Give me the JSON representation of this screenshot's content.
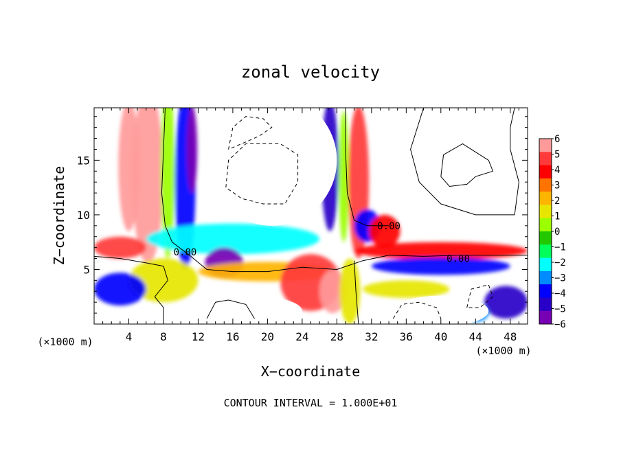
{
  "chart_data": {
    "type": "heatmap",
    "title": "zonal velocity",
    "xlabel": "X−coordinate",
    "ylabel": "Z−coordinate",
    "x_unit_left": "(×1000 m)",
    "x_unit_right": "(×1000 m)",
    "footer": "CONTOUR INTERVAL = 1.000E+01",
    "xlim": [
      0,
      50
    ],
    "ylim": [
      0,
      19.8
    ],
    "x_ticks": [
      4,
      8,
      12,
      16,
      20,
      24,
      28,
      32,
      36,
      40,
      44,
      48
    ],
    "y_ticks": [
      5,
      10,
      15
    ],
    "colorbar": {
      "range": [
        -6,
        6
      ],
      "ticks": [
        6,
        5,
        4,
        3,
        2,
        1,
        0,
        -1,
        -2,
        -3,
        -4,
        -5,
        -6
      ],
      "tick_labels": [
        "6",
        "5",
        "4",
        "3",
        "2",
        "1",
        "0",
        "−1",
        "−2",
        "−3",
        "−4",
        "−5",
        "−6"
      ],
      "colors": [
        "#ff9a9a",
        "#ff3a3a",
        "#ff0000",
        "#ff7300",
        "#ffb400",
        "#e6e600",
        "#9bff00",
        "#23c800",
        "#00ff5a",
        "#00ffff",
        "#008cff",
        "#0000ff",
        "#2800c8",
        "#7800b4"
      ]
    },
    "contour_labels": [
      {
        "text": "0.00",
        "x": 10.5,
        "z": 6.6
      },
      {
        "text": "0.00",
        "x": 34.0,
        "z": 9.0
      },
      {
        "text": "0.00",
        "x": 42.0,
        "z": 6.0
      }
    ],
    "field_blobs": [
      {
        "x": 6.2,
        "z": 13.5,
        "a": 1.8,
        "b": 8.0,
        "v": 5.5
      },
      {
        "x": 4.0,
        "z": 14.5,
        "a": 1.2,
        "b": 6.0,
        "v": 6.0
      },
      {
        "x": 3.0,
        "z": 7.0,
        "a": 3.0,
        "b": 1.0,
        "v": 5.0
      },
      {
        "x": 8.5,
        "z": 14.0,
        "a": 0.8,
        "b": 8.0,
        "v": 0.5
      },
      {
        "x": 10.5,
        "z": 13.0,
        "a": 1.2,
        "b": 8.0,
        "v": -3.5
      },
      {
        "x": 11.3,
        "z": 16.0,
        "a": 0.6,
        "b": 4.0,
        "v": -5.5
      },
      {
        "x": 16.0,
        "z": 7.8,
        "a": 10.0,
        "b": 1.4,
        "v": -2.5
      },
      {
        "x": 15.0,
        "z": 5.6,
        "a": 2.2,
        "b": 1.4,
        "v": -5.5
      },
      {
        "x": 20.0,
        "z": 4.8,
        "a": 8.0,
        "b": 0.9,
        "v": 2.5
      },
      {
        "x": 25.0,
        "z": 3.8,
        "a": 3.5,
        "b": 2.6,
        "v": 4.5
      },
      {
        "x": 27.5,
        "z": 3.0,
        "a": 1.5,
        "b": 2.0,
        "v": 5.5
      },
      {
        "x": 8.0,
        "z": 4.0,
        "a": 4.0,
        "b": 2.0,
        "v": 1.2
      },
      {
        "x": 3.0,
        "z": 3.2,
        "a": 3.0,
        "b": 1.5,
        "v": -3.5
      },
      {
        "x": 27.2,
        "z": 14.5,
        "a": 1.0,
        "b": 6.0,
        "v": -4.5
      },
      {
        "x": 28.8,
        "z": 13.5,
        "a": 0.6,
        "b": 6.0,
        "v": 0.5
      },
      {
        "x": 30.5,
        "z": 13.0,
        "a": 1.2,
        "b": 7.0,
        "v": 4.5
      },
      {
        "x": 29.5,
        "z": 3.0,
        "a": 1.2,
        "b": 3.0,
        "v": 1.0
      },
      {
        "x": 31.5,
        "z": 9.0,
        "a": 1.5,
        "b": 1.5,
        "v": -3.5
      },
      {
        "x": 33.5,
        "z": 8.5,
        "a": 1.8,
        "b": 1.5,
        "v": 4.0
      },
      {
        "x": 40.0,
        "z": 6.7,
        "a": 10.0,
        "b": 0.8,
        "v": 4.0
      },
      {
        "x": 40.0,
        "z": 5.3,
        "a": 8.0,
        "b": 0.8,
        "v": -3.5
      },
      {
        "x": 36.0,
        "z": 3.2,
        "a": 5.0,
        "b": 0.8,
        "v": 1.0
      },
      {
        "x": 47.5,
        "z": 2.0,
        "a": 2.5,
        "b": 1.5,
        "v": -4.5
      },
      {
        "x": 44.0,
        "z": 1.0,
        "a": 1.5,
        "b": 0.8,
        "v": -3.0
      }
    ],
    "empty_regions": [
      {
        "x": 20.5,
        "z": 15.0,
        "a": 7.5,
        "b": 6.0
      },
      {
        "x": 42.0,
        "z": 15.0,
        "a": 9.0,
        "b": 6.0
      },
      {
        "x": 18.0,
        "z": 1.2,
        "a": 6.0,
        "b": 1.4
      },
      {
        "x": 40.0,
        "z": 1.2,
        "a": 5.5,
        "b": 1.4
      }
    ],
    "contours_solid": [
      [
        [
          8.2,
          19.8
        ],
        [
          8.0,
          16.0
        ],
        [
          7.8,
          12.0
        ],
        [
          8.2,
          9.0
        ],
        [
          9.0,
          7.5
        ],
        [
          11.0,
          6.3
        ],
        [
          13.0,
          5.0
        ],
        [
          16.0,
          4.8
        ],
        [
          20.0,
          4.8
        ],
        [
          24.0,
          5.2
        ],
        [
          28.0,
          5.0
        ],
        [
          31.0,
          5.8
        ],
        [
          34.0,
          6.3
        ],
        [
          38.0,
          6.2
        ],
        [
          42.0,
          6.3
        ],
        [
          46.0,
          6.3
        ],
        [
          50.0,
          6.3
        ]
      ],
      [
        [
          29.0,
          19.8
        ],
        [
          29.0,
          16.0
        ],
        [
          29.2,
          12.0
        ],
        [
          30.0,
          9.5
        ],
        [
          31.5,
          9.0
        ],
        [
          34.0,
          9.0
        ]
      ],
      [
        [
          30.0,
          5.8
        ],
        [
          30.2,
          3.0
        ],
        [
          30.5,
          0.0
        ]
      ],
      [
        [
          0.0,
          6.2
        ],
        [
          3.0,
          6.0
        ],
        [
          6.0,
          5.6
        ],
        [
          8.0,
          5.3
        ],
        [
          8.5,
          4.0
        ],
        [
          7.0,
          2.5
        ],
        [
          8.0,
          1.5
        ],
        [
          8.0,
          0.0
        ]
      ],
      [
        [
          38.0,
          19.8
        ],
        [
          36.5,
          16.0
        ],
        [
          37.5,
          13.0
        ],
        [
          40.0,
          11.0
        ],
        [
          44.0,
          10.0
        ],
        [
          48.5,
          10.0
        ],
        [
          49.0,
          13.0
        ],
        [
          48.0,
          16.0
        ],
        [
          48.0,
          18.0
        ],
        [
          48.5,
          19.8
        ]
      ],
      [
        [
          40.0,
          13.5
        ],
        [
          40.3,
          15.5
        ],
        [
          42.5,
          16.5
        ],
        [
          45.5,
          15.0
        ],
        [
          46.0,
          14.0
        ],
        [
          44.0,
          13.5
        ],
        [
          43.0,
          12.8
        ],
        [
          41.0,
          12.6
        ],
        [
          40.0,
          13.5
        ]
      ],
      [
        [
          13.0,
          0.5
        ],
        [
          14.0,
          2.0
        ],
        [
          15.5,
          2.2
        ],
        [
          17.5,
          1.8
        ],
        [
          18.5,
          0.5
        ]
      ]
    ],
    "contours_dashed": [
      [
        [
          15.5,
          16.0
        ],
        [
          16.0,
          18.0
        ],
        [
          17.5,
          19.0
        ],
        [
          19.5,
          18.8
        ],
        [
          20.5,
          18.0
        ],
        [
          19.0,
          17.2
        ],
        [
          17.0,
          16.5
        ],
        [
          15.5,
          16.0
        ]
      ],
      [
        [
          15.2,
          12.5
        ],
        [
          15.5,
          15.0
        ],
        [
          17.5,
          16.5
        ],
        [
          21.5,
          16.5
        ],
        [
          23.5,
          15.5
        ],
        [
          23.5,
          13.0
        ],
        [
          22.0,
          11.0
        ],
        [
          19.5,
          11.0
        ],
        [
          17.0,
          11.5
        ],
        [
          15.2,
          12.5
        ]
      ],
      [
        [
          34.5,
          0.5
        ],
        [
          35.5,
          1.8
        ],
        [
          37.5,
          2.0
        ],
        [
          39.5,
          1.5
        ],
        [
          40.0,
          0.5
        ]
      ],
      [
        [
          43.0,
          1.5
        ],
        [
          43.5,
          3.2
        ],
        [
          45.5,
          3.6
        ],
        [
          46.0,
          2.5
        ],
        [
          44.5,
          1.5
        ],
        [
          43.0,
          1.5
        ]
      ]
    ]
  }
}
